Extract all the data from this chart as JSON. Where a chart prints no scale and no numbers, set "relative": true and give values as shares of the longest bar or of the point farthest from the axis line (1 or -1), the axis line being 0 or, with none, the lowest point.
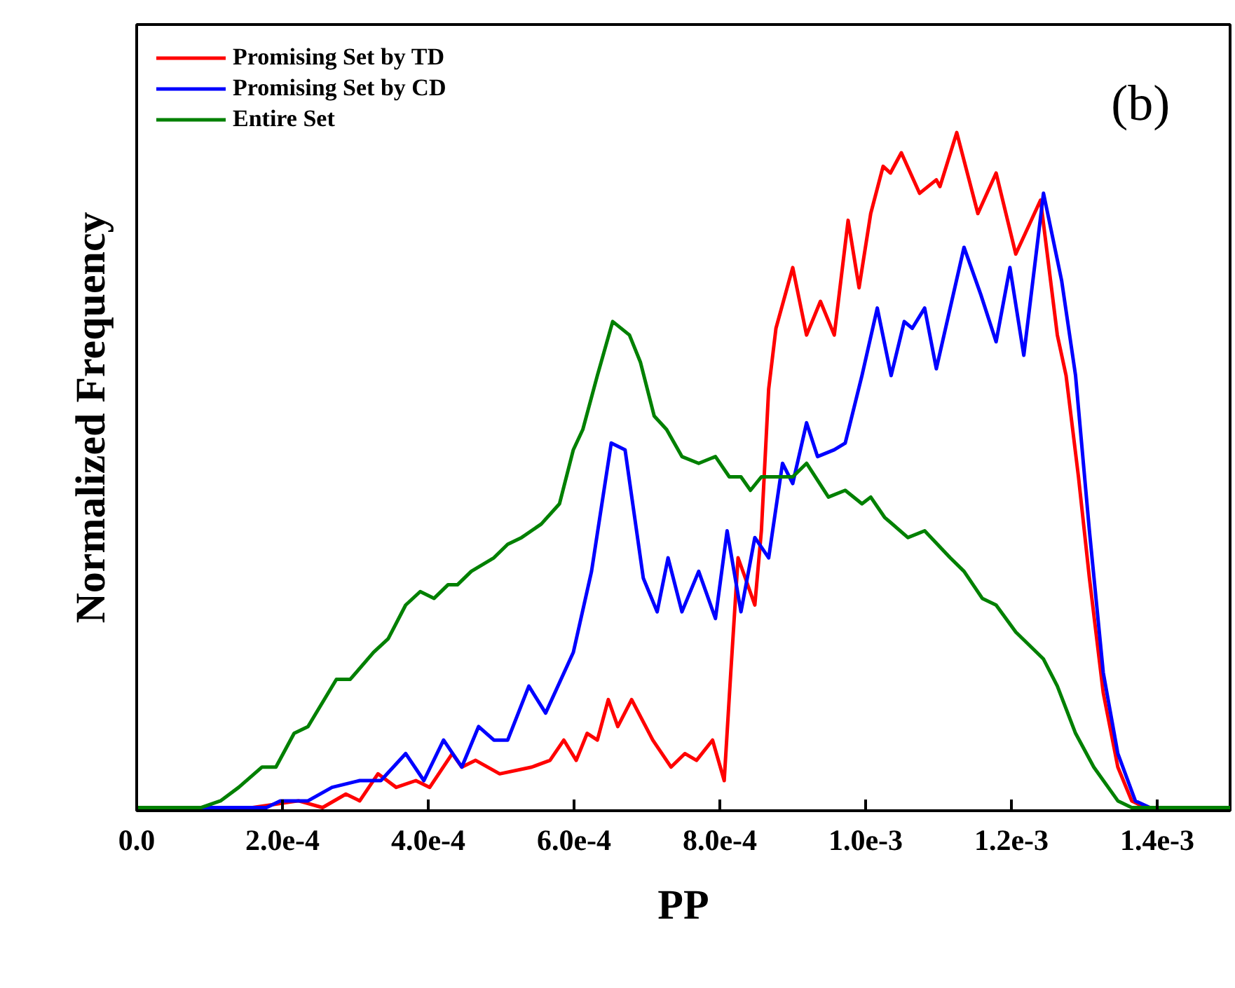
{
  "chart_data": {
    "type": "line",
    "xlabel": "PP",
    "ylabel": "Normalized Frequency",
    "annotations": [
      "(b)"
    ],
    "relative": true,
    "legend": "top left",
    "grid": false,
    "tick_labels": "x",
    "xlim": [
      0,
      0.0015
    ],
    "xticks": [
      {
        "value": 0,
        "label": "0.0"
      },
      {
        "value": 0.0002,
        "label": "2.0e-4"
      },
      {
        "value": 0.0004,
        "label": "4.0e-4"
      },
      {
        "value": 0.0006,
        "label": "6.0e-4"
      },
      {
        "value": 0.0008,
        "label": "8.0e-4"
      },
      {
        "value": 0.001,
        "label": "1.0e-3"
      },
      {
        "value": 0.0012,
        "label": "1.2e-3"
      },
      {
        "value": 0.0014,
        "label": "1.4e-3"
      }
    ],
    "series": [
      {
        "name": "Promising Set by TD",
        "color": "#ff0000",
        "x": [
          0,
          0.000159,
          0.000222,
          0.000255,
          0.000287,
          0.000306,
          0.000331,
          0.000356,
          0.000383,
          0.000402,
          0.000433,
          0.000446,
          0.000465,
          0.000498,
          0.000542,
          0.000567,
          0.000586,
          0.000603,
          0.000618,
          0.000632,
          0.000647,
          0.00066,
          0.000679,
          0.000708,
          0.000733,
          0.000752,
          0.000768,
          0.00079,
          0.000806,
          0.000815,
          0.000825,
          0.000835,
          0.000848,
          0.000857,
          0.000867,
          0.000877,
          0.0009,
          0.000919,
          0.000938,
          0.000957,
          0.000976,
          0.000991,
          0.001007,
          0.001024,
          0.001034,
          0.001049,
          0.001074,
          0.001097,
          0.001102,
          0.001125,
          0.001154,
          0.001179,
          0.001206,
          0.00124,
          0.001263,
          0.001275,
          0.001292,
          0.001307,
          0.001326,
          0.001346,
          0.001365,
          0.001384,
          0.0015
        ],
        "values": [
          0,
          0,
          0.01,
          0,
          0.02,
          0.01,
          0.05,
          0.03,
          0.04,
          0.03,
          0.08,
          0.06,
          0.07,
          0.05,
          0.06,
          0.07,
          0.1,
          0.07,
          0.11,
          0.1,
          0.16,
          0.12,
          0.16,
          0.1,
          0.06,
          0.08,
          0.07,
          0.1,
          0.04,
          0.2,
          0.37,
          0.34,
          0.3,
          0.41,
          0.62,
          0.71,
          0.8,
          0.7,
          0.75,
          0.7,
          0.87,
          0.77,
          0.88,
          0.95,
          0.94,
          0.97,
          0.91,
          0.93,
          0.92,
          1.0,
          0.88,
          0.94,
          0.82,
          0.9,
          0.7,
          0.64,
          0.49,
          0.34,
          0.17,
          0.06,
          0.01,
          0,
          0
        ]
      },
      {
        "name": "Promising Set by CD",
        "color": "#0000ff",
        "x": [
          0,
          0.000101,
          0.000178,
          0.000197,
          0.000235,
          0.000268,
          0.000306,
          0.000335,
          0.000369,
          0.000394,
          0.000421,
          0.000446,
          0.000469,
          0.00049,
          0.000509,
          0.000538,
          0.000561,
          0.000599,
          0.000624,
          0.000651,
          0.00067,
          0.000695,
          0.000714,
          0.000729,
          0.000748,
          0.000771,
          0.000794,
          0.00081,
          0.000829,
          0.000848,
          0.000867,
          0.000886,
          0.0009,
          0.000919,
          0.000934,
          0.000957,
          0.000972,
          0.000995,
          0.001016,
          0.001035,
          0.001053,
          0.001064,
          0.001081,
          0.001097,
          0.001135,
          0.001158,
          0.001179,
          0.001198,
          0.001217,
          0.001244,
          0.001269,
          0.001288,
          0.001307,
          0.001326,
          0.001346,
          0.00137,
          0.00139,
          0.0015
        ],
        "values": [
          0,
          0,
          0,
          0.01,
          0.01,
          0.03,
          0.04,
          0.04,
          0.08,
          0.04,
          0.1,
          0.06,
          0.12,
          0.1,
          0.1,
          0.18,
          0.14,
          0.23,
          0.35,
          0.54,
          0.53,
          0.34,
          0.29,
          0.37,
          0.29,
          0.35,
          0.28,
          0.41,
          0.29,
          0.4,
          0.37,
          0.51,
          0.48,
          0.57,
          0.52,
          0.53,
          0.54,
          0.64,
          0.74,
          0.64,
          0.72,
          0.71,
          0.74,
          0.65,
          0.83,
          0.76,
          0.69,
          0.8,
          0.67,
          0.91,
          0.78,
          0.64,
          0.41,
          0.2,
          0.08,
          0.01,
          0,
          0
        ]
      },
      {
        "name": "Entire Set",
        "color": "#008000",
        "x": [
          0,
          8.8e-05,
          0.000115,
          0.00014,
          0.000172,
          0.000191,
          0.000216,
          0.000235,
          0.000274,
          0.000293,
          0.000325,
          0.000345,
          0.000369,
          0.000389,
          0.000408,
          0.000427,
          0.00044,
          0.000459,
          0.00049,
          0.000509,
          0.000528,
          0.000555,
          0.00058,
          0.000599,
          0.000612,
          0.000632,
          0.000653,
          0.000676,
          0.000691,
          0.00071,
          0.000727,
          0.000748,
          0.000771,
          0.000794,
          0.000813,
          0.000829,
          0.000842,
          0.000857,
          0.00088,
          0.0009,
          0.000919,
          0.000949,
          0.000972,
          0.000995,
          0.001007,
          0.001026,
          0.001058,
          0.001081,
          0.001116,
          0.001135,
          0.00116,
          0.001179,
          0.001206,
          0.001244,
          0.001263,
          0.001288,
          0.001313,
          0.001346,
          0.001365,
          0.0015
        ],
        "values": [
          0,
          0,
          0.01,
          0.03,
          0.06,
          0.06,
          0.11,
          0.12,
          0.19,
          0.19,
          0.23,
          0.25,
          0.3,
          0.32,
          0.31,
          0.33,
          0.33,
          0.35,
          0.37,
          0.39,
          0.4,
          0.42,
          0.45,
          0.53,
          0.56,
          0.64,
          0.72,
          0.7,
          0.66,
          0.58,
          0.56,
          0.52,
          0.51,
          0.52,
          0.49,
          0.49,
          0.47,
          0.49,
          0.49,
          0.49,
          0.51,
          0.46,
          0.47,
          0.45,
          0.46,
          0.43,
          0.4,
          0.41,
          0.37,
          0.35,
          0.31,
          0.3,
          0.26,
          0.22,
          0.18,
          0.11,
          0.06,
          0.01,
          0,
          0
        ]
      }
    ]
  }
}
